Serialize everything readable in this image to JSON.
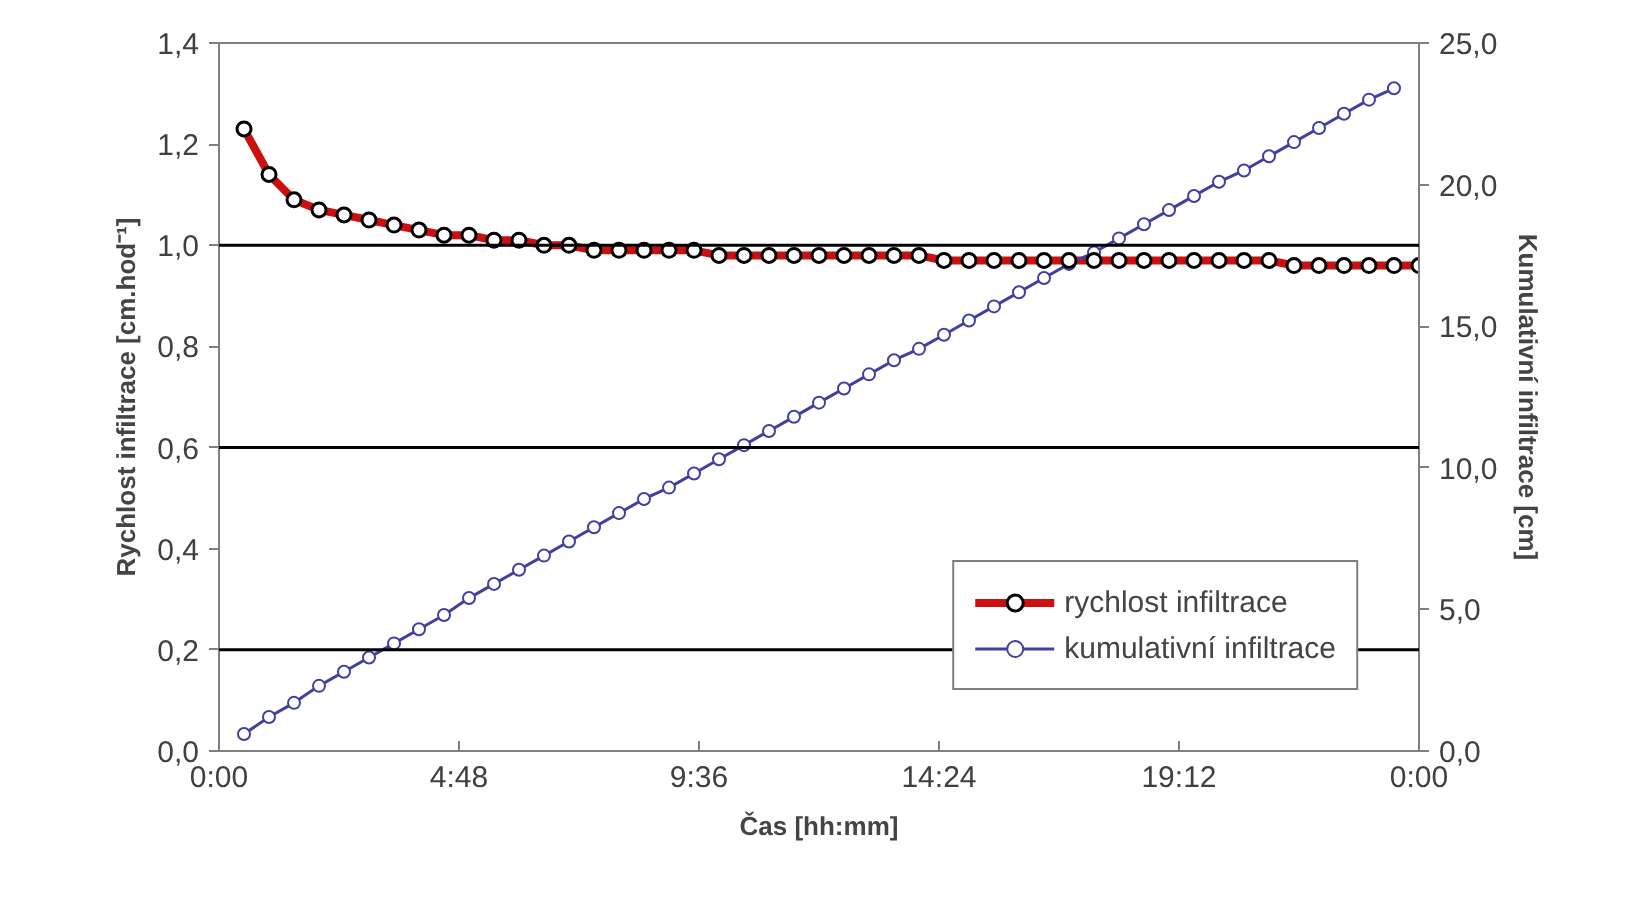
{
  "chart_data": {
    "type": "line",
    "xlabel": "Čas [hh:mm]",
    "ylabel": "Rychlost infiltrace [cm.hod⁻¹]",
    "y2label": "Kumulativní infiltrace [cm]",
    "xlim": [
      0,
      24
    ],
    "xticks": [
      {
        "value": 0,
        "label": "0:00"
      },
      {
        "value": 4.8,
        "label": "4:48"
      },
      {
        "value": 9.6,
        "label": "9:36"
      },
      {
        "value": 14.4,
        "label": "14:24"
      },
      {
        "value": 19.2,
        "label": "19:12"
      },
      {
        "value": 24,
        "label": "0:00"
      }
    ],
    "ylim": [
      0,
      1.4
    ],
    "yticks": [
      {
        "value": 0,
        "label": "0,0"
      },
      {
        "value": 0.2,
        "label": "0,2"
      },
      {
        "value": 0.4,
        "label": "0,4"
      },
      {
        "value": 0.6,
        "label": "0,6"
      },
      {
        "value": 0.8,
        "label": "0,8"
      },
      {
        "value": 1.0,
        "label": "1,0"
      },
      {
        "value": 1.2,
        "label": "1,2"
      },
      {
        "value": 1.4,
        "label": "1,4"
      }
    ],
    "y2lim": [
      0,
      25
    ],
    "y2ticks": [
      {
        "value": 0,
        "label": "0,0"
      },
      {
        "value": 5,
        "label": "5,0"
      },
      {
        "value": 10,
        "label": "10,0"
      },
      {
        "value": 15,
        "label": "15,0"
      },
      {
        "value": 20,
        "label": "20,0"
      },
      {
        "value": 25,
        "label": "25,0"
      }
    ],
    "grid": false,
    "legend": "bottom right",
    "marker": "circle",
    "line_style": "solid",
    "ref_lines": [
      {
        "axis": "y",
        "value": 0.2,
        "color": "#000000"
      },
      {
        "axis": "y",
        "value": 0.6,
        "color": "#000000"
      },
      {
        "axis": "y",
        "value": 1.0,
        "color": "#000000"
      }
    ],
    "series": [
      {
        "name": "rychlost infiltrace",
        "color": "#cc1010",
        "x": [
          0.5,
          1,
          1.5,
          2,
          2.5,
          3,
          3.5,
          4,
          4.5,
          5,
          5.5,
          6,
          6.5,
          7,
          7.5,
          8,
          8.5,
          9,
          9.5,
          10,
          10.5,
          11,
          11.5,
          12,
          12.5,
          13,
          13.5,
          14,
          14.5,
          15,
          15.5,
          16,
          16.5,
          17,
          17.5,
          18,
          18.5,
          19,
          19.5,
          20,
          20.5,
          21,
          21.5,
          22,
          22.5,
          23,
          23.5,
          24
        ],
        "values": [
          1.23,
          1.14,
          1.09,
          1.07,
          1.06,
          1.05,
          1.04,
          1.03,
          1.02,
          1.02,
          1.01,
          1.01,
          1.0,
          1.0,
          0.99,
          0.99,
          0.99,
          0.99,
          0.99,
          0.98,
          0.98,
          0.98,
          0.98,
          0.98,
          0.98,
          0.98,
          0.98,
          0.98,
          0.97,
          0.97,
          0.97,
          0.97,
          0.97,
          0.97,
          0.97,
          0.97,
          0.97,
          0.97,
          0.97,
          0.97,
          0.97,
          0.97,
          0.96,
          0.96,
          0.96,
          0.96,
          0.96,
          0.96
        ]
      },
      {
        "name": "kumulativní infiltrace",
        "color": "#4040a0",
        "axis": "y2",
        "x": [
          0.5,
          1,
          1.5,
          2,
          2.5,
          3,
          3.5,
          4,
          4.5,
          5,
          5.5,
          6,
          6.5,
          7,
          7.5,
          8,
          8.5,
          9,
          9.5,
          10,
          10.5,
          11,
          11.5,
          12,
          12.5,
          13,
          13.5,
          14,
          14.5,
          15,
          15.5,
          16,
          16.5,
          17,
          17.5,
          18,
          18.5,
          19,
          19.5,
          20,
          20.5,
          21,
          21.5,
          22,
          22.5,
          23,
          23.5
        ],
        "values": [
          0.6,
          1.2,
          1.7,
          2.3,
          2.8,
          3.3,
          3.8,
          4.3,
          4.8,
          5.4,
          5.9,
          6.4,
          6.9,
          7.4,
          7.9,
          8.4,
          8.9,
          9.3,
          9.8,
          10.3,
          10.8,
          11.3,
          11.8,
          12.3,
          12.8,
          13.3,
          13.8,
          14.2,
          14.7,
          15.2,
          15.7,
          16.2,
          16.7,
          17.2,
          17.6,
          18.1,
          18.6,
          19.1,
          19.6,
          20.1,
          20.5,
          21.0,
          21.5,
          22.0,
          22.5,
          23.0,
          23.4
        ]
      }
    ]
  }
}
